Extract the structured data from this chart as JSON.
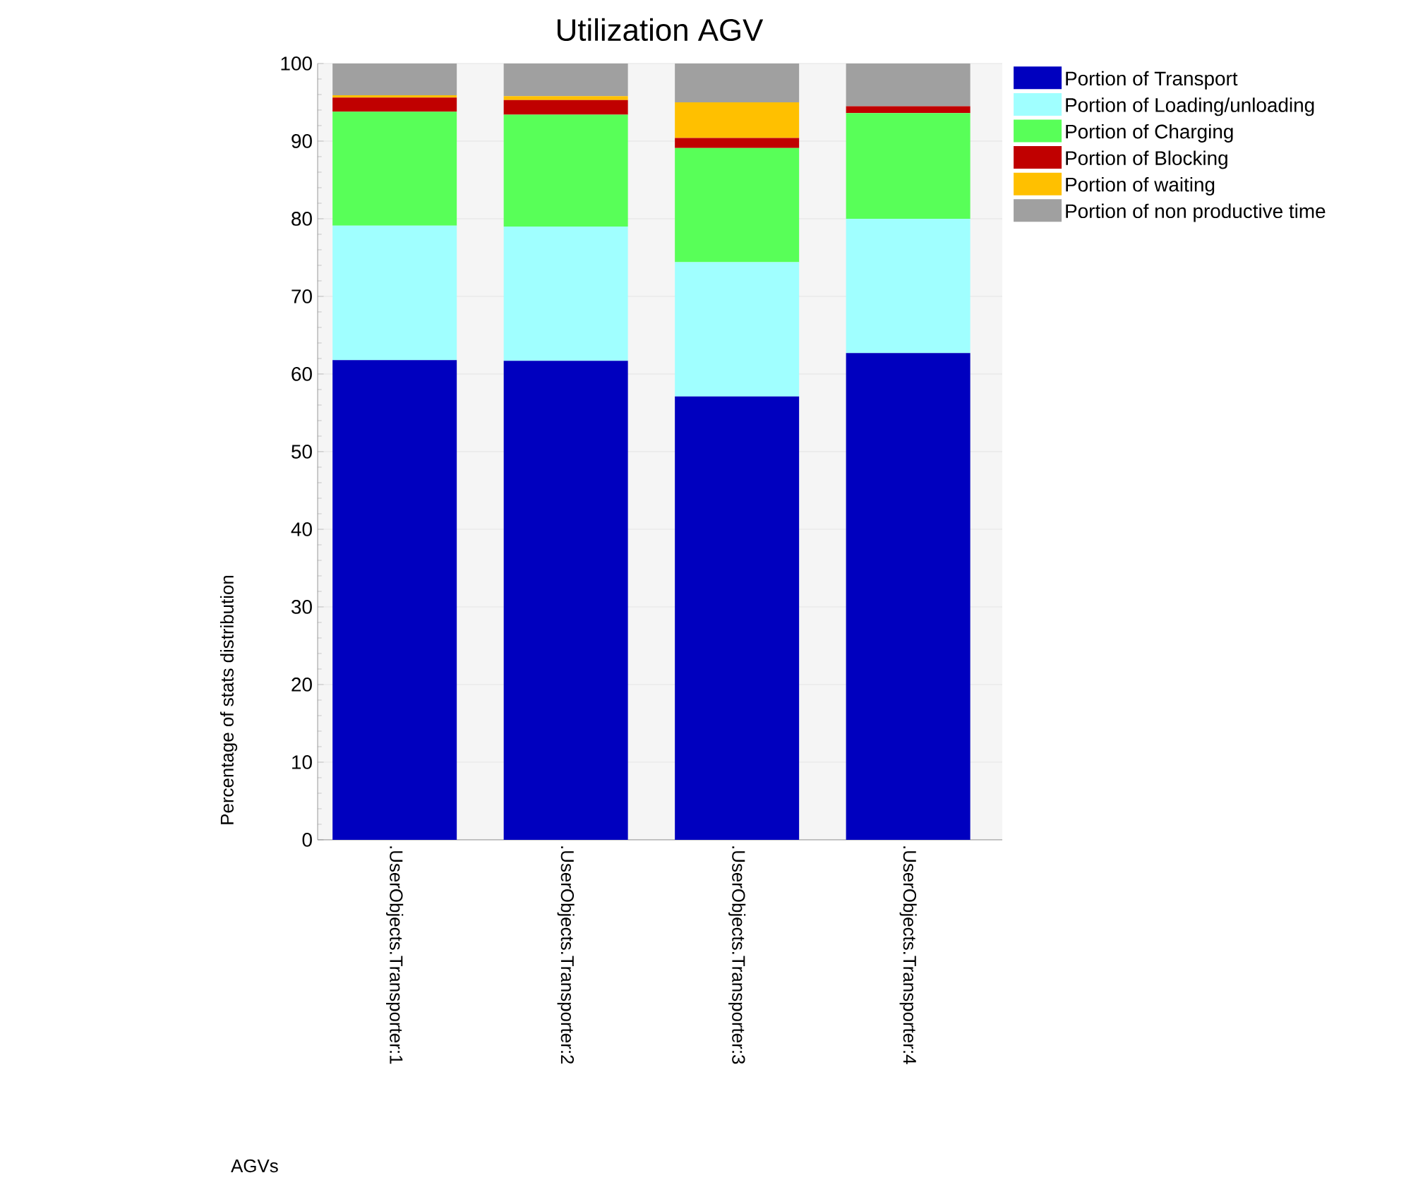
{
  "chart_data": {
    "type": "bar",
    "stacked": true,
    "title": "Utilization AGV",
    "annotations": [
      "AGVs"
    ],
    "ylabel": "Percentage of stats distribution",
    "categories": [
      ".UserObjects.Transporter:1",
      ".UserObjects.Transporter:2",
      ".UserObjects.Transporter:3",
      ".UserObjects.Transporter:4"
    ],
    "series": [
      {
        "name": "Portion of Transport",
        "color": "#0000bf",
        "values": [
          61.8,
          61.7,
          57.1,
          62.7
        ]
      },
      {
        "name": "Portion of Loading/unloading",
        "color": "#a0ffff",
        "values": [
          17.3,
          17.3,
          17.3,
          17.3
        ]
      },
      {
        "name": "Portion of Charging",
        "color": "#58ff58",
        "values": [
          14.7,
          14.4,
          14.7,
          13.6
        ]
      },
      {
        "name": "Portion of Blocking",
        "color": "#c00000",
        "values": [
          1.8,
          1.9,
          1.3,
          0.9
        ]
      },
      {
        "name": "Portion of waiting",
        "color": "#ffc000",
        "values": [
          0.3,
          0.5,
          4.6,
          0
        ]
      },
      {
        "name": "Portion of non productive time",
        "color": "#a0a0a0",
        "values": [
          4.1,
          4.2,
          5.0,
          5.5
        ]
      }
    ],
    "ylim": [
      0,
      100
    ],
    "yticks": [
      0,
      10,
      20,
      30,
      40,
      50,
      60,
      70,
      80,
      90,
      100
    ],
    "grid": "y",
    "legend": "top right"
  }
}
